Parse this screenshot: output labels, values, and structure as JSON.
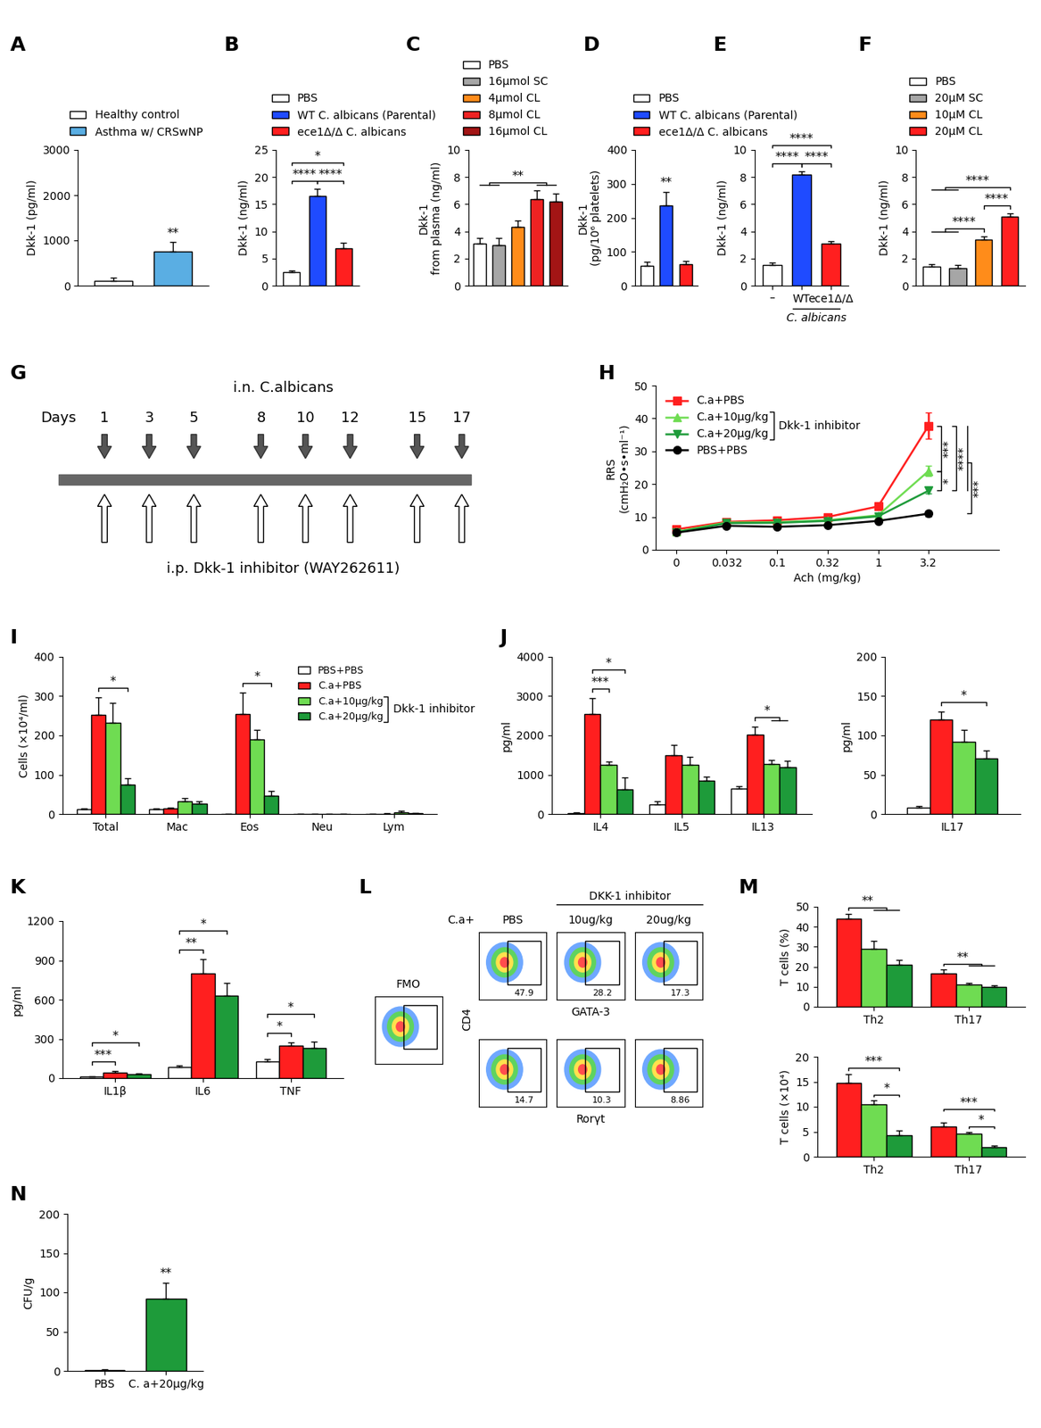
{
  "chart_data": [
    {
      "title": "A",
      "type": "bar",
      "categories": [
        "Healthy control",
        "Asthma w/ CRSwNP"
      ],
      "values": [
        110,
        760
      ],
      "errors": [
        60,
        200
      ],
      "colors": [
        "#ffffff",
        "#5aaee3"
      ],
      "ylabel": "Dkk-1 (pg/ml)",
      "ylim": [
        0,
        3000
      ],
      "yticks": [
        0,
        1000,
        2000,
        3000
      ],
      "tick_labels": "y",
      "legend": "above",
      "significance": [
        {
          "label": "**",
          "at": 1
        }
      ]
    },
    {
      "title": "B",
      "type": "bar",
      "categories": [
        "PBS",
        "WT C. albicans (Parental)",
        "ece1Δ/Δ C. albicans"
      ],
      "values": [
        2.5,
        16.5,
        6.8
      ],
      "errors": [
        0.3,
        1.3,
        1.1
      ],
      "colors": [
        "#ffffff",
        "#1f4bff",
        "#ff1f1f"
      ],
      "ylabel": "Dkk-1 (ng/ml)",
      "ylim": [
        0,
        25
      ],
      "yticks": [
        0,
        5,
        10,
        15,
        20,
        25
      ],
      "tick_labels": "y",
      "legend": "above",
      "significance": [
        {
          "label": "****",
          "from": [
            0
          ],
          "to": [
            1
          ]
        },
        {
          "label": "****",
          "from": [
            1
          ],
          "to": [
            2
          ]
        },
        {
          "label": "*",
          "from": [
            0
          ],
          "to": [
            2
          ]
        }
      ]
    },
    {
      "title": "C",
      "type": "bar",
      "categories": [
        "PBS",
        "16μmol SC",
        "4μmol CL",
        "8μmol CL",
        "16μmol CL"
      ],
      "values": [
        3.1,
        3.0,
        4.3,
        6.4,
        6.2
      ],
      "errors": [
        0.4,
        0.5,
        0.5,
        0.6,
        0.6
      ],
      "colors": [
        "#ffffff",
        "#a6a6a6",
        "#ff8c1a",
        "#ee2222",
        "#a31515"
      ],
      "ylabel": "Dkk-1\nfrom plasma (ng/ml)",
      "ylim": [
        0,
        10
      ],
      "yticks": [
        0,
        2,
        4,
        6,
        8,
        10
      ],
      "tick_labels": "y",
      "legend": "above",
      "significance": [
        {
          "label": "**",
          "from": [
            0,
            1
          ],
          "to": [
            3,
            4
          ]
        }
      ]
    },
    {
      "title": "D",
      "type": "bar",
      "categories": [
        "PBS",
        "WT C. albicans (Parental)",
        "ece1Δ/Δ C. albicans"
      ],
      "values": [
        58,
        237,
        62
      ],
      "errors": [
        12,
        40,
        10
      ],
      "colors": [
        "#ffffff",
        "#1f4bff",
        "#ff1f1f"
      ],
      "ylabel": "Dkk-1\n(pg/10⁶ platelets)",
      "ylim": [
        0,
        400
      ],
      "yticks": [
        0,
        100,
        200,
        300,
        400
      ],
      "tick_labels": "y",
      "legend": "above",
      "significance": [
        {
          "label": "**",
          "at": 1
        }
      ]
    },
    {
      "title": "E",
      "type": "bar",
      "categories": [
        "–",
        "WT",
        "ece1Δ/Δ"
      ],
      "group_label": {
        "text": "C. albicans",
        "categories": [
          1,
          2
        ]
      },
      "values": [
        1.5,
        8.2,
        3.1
      ],
      "errors": [
        0.2,
        0.2,
        0.15
      ],
      "colors": [
        "#ffffff",
        "#1f4bff",
        "#ff1f1f"
      ],
      "ylabel": "Dkk-1 (ng/ml)",
      "ylim": [
        0,
        10
      ],
      "yticks": [
        0,
        2,
        4,
        6,
        8,
        10
      ],
      "significance": [
        {
          "label": "****",
          "from": [
            0
          ],
          "to": [
            1
          ]
        },
        {
          "label": "****",
          "from": [
            1
          ],
          "to": [
            2
          ]
        },
        {
          "label": "****",
          "from": [
            0
          ],
          "to": [
            2
          ]
        }
      ]
    },
    {
      "title": "F",
      "type": "bar",
      "categories": [
        "PBS",
        "20μM SC",
        "10μM CL",
        "20μM CL"
      ],
      "values": [
        1.4,
        1.3,
        3.4,
        5.1
      ],
      "errors": [
        0.2,
        0.2,
        0.2,
        0.2
      ],
      "colors": [
        "#ffffff",
        "#a6a6a6",
        "#ff8c1a",
        "#ff1f1f"
      ],
      "ylabel": "Dkk-1 (ng/ml)",
      "ylim": [
        0,
        10
      ],
      "yticks": [
        0,
        2,
        4,
        6,
        8,
        10
      ],
      "tick_labels": "y",
      "legend": "above",
      "significance": [
        {
          "label": "****",
          "from": [
            0,
            1
          ],
          "to": [
            2
          ]
        },
        {
          "label": "****",
          "from": [
            2
          ],
          "to": [
            3
          ]
        },
        {
          "label": "****",
          "from": [
            0,
            1
          ],
          "to": [
            3
          ]
        }
      ]
    },
    {
      "title": "G",
      "type": "timeline",
      "day_label": "Days",
      "days": [
        1,
        3,
        5,
        8,
        10,
        12,
        15,
        17
      ],
      "top_label": "i.n. C.albicans",
      "bottom_label": "i.p. Dkk-1 inhibitor (WAY262611)"
    },
    {
      "title": "H",
      "type": "line",
      "categories": [
        "0",
        "0.032",
        "0.1",
        "0.32",
        "1",
        "3.2"
      ],
      "xlabel": "Ach (mg/kg)",
      "ylabel": "RRS\n(cmH₂O•s•ml⁻¹)",
      "ylim": [
        0,
        50
      ],
      "yticks": [
        0,
        10,
        20,
        30,
        40,
        50
      ],
      "legend": "upper left",
      "legend_group": {
        "text": "Dkk-1 inhibitor",
        "series": [
          1,
          2
        ]
      },
      "series": [
        {
          "name": "C.a+PBS",
          "color": "#ff1f1f",
          "marker": "square",
          "values": [
            6.2,
            8.5,
            9.0,
            10.0,
            13.2,
            37.8
          ],
          "errors": [
            0.5,
            0.6,
            0.5,
            0.6,
            0.8,
            4.0
          ]
        },
        {
          "name": "C.a+10μg/kg",
          "color": "#6fdc52",
          "marker": "triangle_up",
          "values": [
            5.5,
            8.3,
            8.4,
            9.0,
            10.5,
            24.0
          ],
          "errors": [
            0.4,
            0.5,
            0.5,
            0.5,
            0.6,
            1.5
          ]
        },
        {
          "name": "C.a+20μg/kg",
          "color": "#1e9b3a",
          "marker": "triangle_down",
          "values": [
            5.3,
            8.1,
            8.2,
            8.8,
            10.2,
            18.0
          ],
          "errors": [
            0.4,
            0.5,
            0.4,
            0.5,
            0.5,
            0.8
          ]
        },
        {
          "name": "PBS+PBS",
          "color": "#000000",
          "marker": "circle",
          "values": [
            5.2,
            7.3,
            7.0,
            7.5,
            8.8,
            11.0
          ],
          "errors": [
            0.3,
            0.4,
            0.4,
            0.4,
            0.5,
            0.8
          ]
        }
      ],
      "significance": [
        {
          "label": "***",
          "from": [
            0
          ],
          "to": [
            1
          ]
        },
        {
          "label": "*",
          "from": [
            1
          ],
          "to": [
            2
          ]
        },
        {
          "label": "****",
          "from": [
            0
          ],
          "to": [
            2
          ]
        },
        {
          "label": "***",
          "from": [
            0,
            1,
            2
          ],
          "to": [
            3
          ]
        }
      ]
    },
    {
      "title": "I",
      "type": "bar",
      "categories": [
        "Total",
        "Mac",
        "Eos",
        "Neu",
        "Lym"
      ],
      "ylabel": "Cells (×10⁴/ml)",
      "ylim": [
        0,
        400
      ],
      "yticks": [
        0,
        100,
        200,
        300,
        400
      ],
      "legend": "upper right",
      "legend_group": {
        "text": "Dkk-1 inhibitor",
        "series": [
          2,
          3
        ]
      },
      "series": [
        {
          "name": "PBS+PBS",
          "color": "#ffffff",
          "values": [
            12,
            12,
            0,
            0,
            0
          ],
          "errors": [
            3,
            2,
            0,
            0,
            0
          ]
        },
        {
          "name": "C.a+PBS",
          "color": "#ff1f1f",
          "values": [
            252,
            14,
            255,
            0,
            1
          ],
          "errors": [
            45,
            2,
            55,
            0,
            1
          ]
        },
        {
          "name": "C.a+10μg/kg",
          "color": "#6fdc52",
          "values": [
            232,
            32,
            190,
            0,
            5
          ],
          "errors": [
            50,
            8,
            25,
            0,
            3
          ]
        },
        {
          "name": "C.a+20μg/kg",
          "color": "#1e9b3a",
          "values": [
            75,
            26,
            47,
            0,
            2
          ],
          "errors": [
            15,
            6,
            12,
            0,
            1
          ]
        }
      ],
      "significance": [
        {
          "label": "*",
          "category": 0,
          "from": [
            1
          ],
          "to": [
            3
          ]
        },
        {
          "label": "*",
          "category": 2,
          "from": [
            1
          ],
          "to": [
            3
          ]
        }
      ]
    },
    {
      "title": "J",
      "type": "bar",
      "categories": [
        "IL4",
        "IL5",
        "IL13"
      ],
      "ylabel": "pg/ml",
      "ylim": [
        0,
        4000
      ],
      "yticks": [
        0,
        1000,
        2000,
        3000,
        4000
      ],
      "series": [
        {
          "name": "PBS+PBS",
          "color": "#ffffff",
          "values": [
            30,
            250,
            650
          ],
          "errors": [
            10,
            80,
            50
          ]
        },
        {
          "name": "C.a+PBS",
          "color": "#ff1f1f",
          "values": [
            2550,
            1500,
            2020
          ],
          "errors": [
            400,
            250,
            200
          ]
        },
        {
          "name": "C.a+10μg/kg",
          "color": "#6fdc52",
          "values": [
            1250,
            1250,
            1280
          ],
          "errors": [
            80,
            200,
            100
          ]
        },
        {
          "name": "C.a+20μg/kg",
          "color": "#1e9b3a",
          "values": [
            620,
            850,
            1200
          ],
          "errors": [
            300,
            100,
            150
          ]
        }
      ],
      "significance": [
        {
          "label": "***",
          "category": 0,
          "from": [
            1
          ],
          "to": [
            2
          ]
        },
        {
          "label": "*",
          "category": 0,
          "from": [
            1
          ],
          "to": [
            3
          ]
        },
        {
          "label": "*",
          "category": 2,
          "from": [
            1
          ],
          "to": [
            2,
            3
          ]
        }
      ]
    },
    {
      "type": "bar",
      "categories": [
        "IL17"
      ],
      "ylabel": "pg/ml",
      "ylim": [
        0,
        200
      ],
      "yticks": [
        0,
        50,
        100,
        150,
        200
      ],
      "series": [
        {
          "name": "PBS+PBS",
          "color": "#ffffff",
          "values": [
            8
          ],
          "errors": [
            2
          ]
        },
        {
          "name": "C.a+PBS",
          "color": "#ff1f1f",
          "values": [
            120
          ],
          "errors": [
            10
          ]
        },
        {
          "name": "C.a+10μg/kg",
          "color": "#6fdc52",
          "values": [
            92
          ],
          "errors": [
            15
          ]
        },
        {
          "name": "C.a+20μg/kg",
          "color": "#1e9b3a",
          "values": [
            71
          ],
          "errors": [
            10
          ]
        }
      ],
      "significance": [
        {
          "label": "*",
          "category": 0,
          "from": [
            1
          ],
          "to": [
            3
          ]
        }
      ]
    },
    {
      "title": "K",
      "type": "bar",
      "categories": [
        "IL1β",
        "IL6",
        "TNF"
      ],
      "ylabel": "pg/ml",
      "ylim": [
        0,
        1200
      ],
      "yticks": [
        0,
        300,
        600,
        900,
        1200
      ],
      "series": [
        {
          "name": "PBS+PBS",
          "color": "#ffffff",
          "values": [
            10,
            85,
            130
          ],
          "errors": [
            3,
            15,
            15
          ]
        },
        {
          "name": "C.a+PBS",
          "color": "#ff1f1f",
          "values": [
            45,
            800,
            250
          ],
          "errors": [
            8,
            110,
            25
          ]
        },
        {
          "name": "C.a+20μg/kg",
          "color": "#1e9b3a",
          "values": [
            30,
            630,
            230
          ],
          "errors": [
            5,
            100,
            50
          ]
        }
      ],
      "significance": [
        {
          "label": "***",
          "category": 0,
          "from": [
            0
          ],
          "to": [
            1
          ]
        },
        {
          "label": "*",
          "category": 0,
          "from": [
            0
          ],
          "to": [
            2
          ]
        },
        {
          "label": "**",
          "category": 1,
          "from": [
            0
          ],
          "to": [
            1
          ]
        },
        {
          "label": "*",
          "category": 1,
          "from": [
            0
          ],
          "to": [
            2
          ]
        },
        {
          "label": "*",
          "category": 2,
          "from": [
            0
          ],
          "to": [
            1
          ]
        },
        {
          "label": "*",
          "category": 2,
          "from": [
            0
          ],
          "to": [
            2
          ]
        }
      ]
    },
    {
      "title": "L",
      "type": "flow_cytometry",
      "row_label": "C.a+",
      "group_label": "DKK-1 inhibitor",
      "group_columns": [
        1,
        2
      ],
      "columns": [
        "PBS",
        "10ug/kg",
        "20ug/kg"
      ],
      "ylabel": "CD4",
      "control": "FMO",
      "rows": [
        {
          "xlabel": "GATA-3",
          "gates": [
            47.9,
            28.2,
            17.3
          ]
        },
        {
          "xlabel": "Rorγt",
          "gates": [
            14.7,
            10.3,
            8.86
          ]
        }
      ]
    },
    {
      "title": "M",
      "type": "bar",
      "categories": [
        "Th2",
        "Th17"
      ],
      "ylabel": "T cells (%)",
      "ylim": [
        0,
        50
      ],
      "yticks": [
        0,
        10,
        20,
        30,
        40,
        50
      ],
      "series": [
        {
          "name": "C.a+PBS",
          "color": "#ff1f1f",
          "values": [
            44,
            16.5
          ],
          "errors": [
            2.5,
            2
          ]
        },
        {
          "name": "C.a+10μg/kg",
          "color": "#6fdc52",
          "values": [
            29,
            11
          ],
          "errors": [
            4,
            1
          ]
        },
        {
          "name": "C.a+20μg/kg",
          "color": "#1e9b3a",
          "values": [
            21,
            10
          ],
          "errors": [
            2.5,
            0.7
          ]
        }
      ],
      "significance": [
        {
          "label": "**",
          "category": 0,
          "from": [
            0
          ],
          "to": [
            1,
            2
          ]
        },
        {
          "label": "**",
          "category": 1,
          "from": [
            0
          ],
          "to": [
            1,
            2
          ]
        }
      ]
    },
    {
      "type": "bar",
      "categories": [
        "Th2",
        "Th17"
      ],
      "ylabel": "T cells (×10⁴)",
      "ylim": [
        0,
        20
      ],
      "yticks": [
        0,
        5,
        10,
        15,
        20
      ],
      "series": [
        {
          "name": "C.a+PBS",
          "color": "#ff1f1f",
          "values": [
            14.7,
            6.0
          ],
          "errors": [
            1.8,
            0.8
          ]
        },
        {
          "name": "C.a+10μg/kg",
          "color": "#6fdc52",
          "values": [
            10.5,
            4.6
          ],
          "errors": [
            0.7,
            0.3
          ]
        },
        {
          "name": "C.a+20μg/kg",
          "color": "#1e9b3a",
          "values": [
            4.3,
            1.9
          ],
          "errors": [
            1.0,
            0.4
          ]
        }
      ],
      "significance": [
        {
          "label": "*",
          "category": 0,
          "from": [
            1
          ],
          "to": [
            2
          ]
        },
        {
          "label": "***",
          "category": 0,
          "from": [
            0
          ],
          "to": [
            2
          ]
        },
        {
          "label": "*",
          "category": 1,
          "from": [
            1
          ],
          "to": [
            2
          ]
        },
        {
          "label": "***",
          "category": 1,
          "from": [
            0
          ],
          "to": [
            2
          ]
        }
      ]
    },
    {
      "title": "N",
      "type": "bar",
      "categories": [
        "PBS",
        "C. a+20μg/kg"
      ],
      "values": [
        1,
        92
      ],
      "errors": [
        1,
        20
      ],
      "colors": [
        "#ff1f1f",
        "#1e9b3a"
      ],
      "ylabel": "CFU/g",
      "ylim": [
        0,
        200
      ],
      "yticks": [
        0,
        50,
        100,
        150,
        200
      ],
      "significance": [
        {
          "label": "**",
          "at": 1
        }
      ]
    }
  ]
}
